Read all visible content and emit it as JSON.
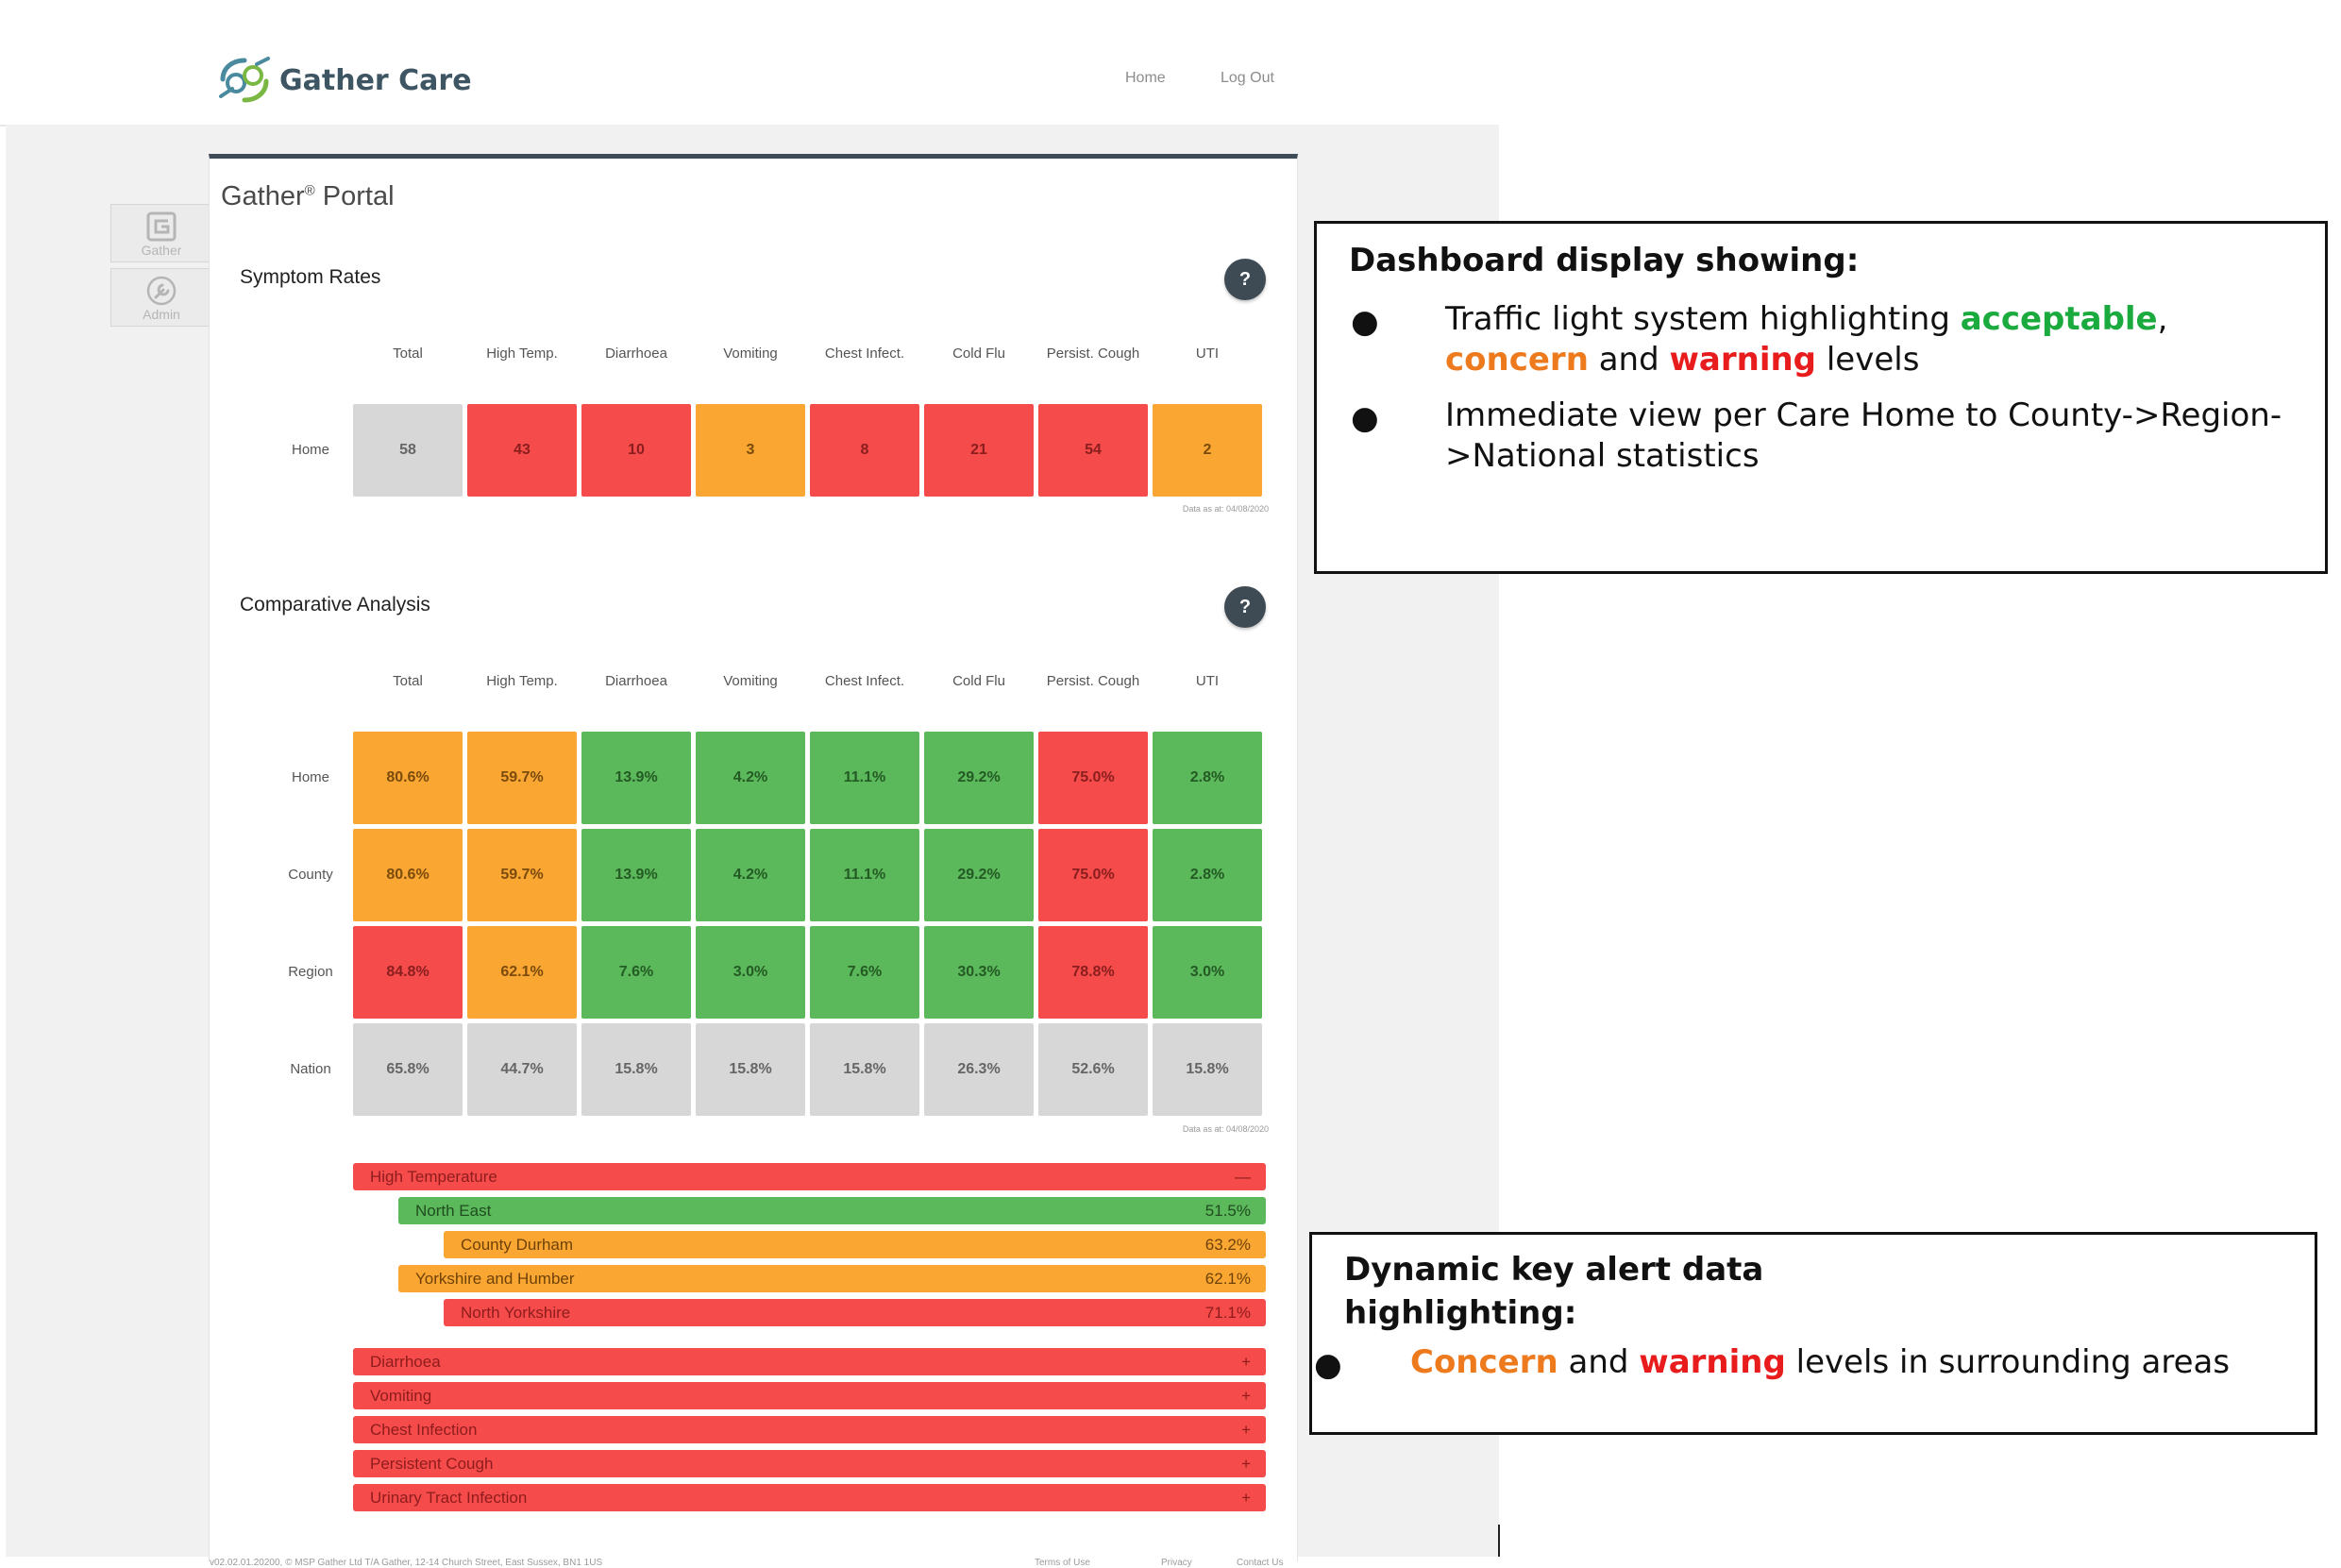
{
  "header": {
    "brand": "Gather Care",
    "nav_home": "Home",
    "nav_logout": "Log Out"
  },
  "sidebar": {
    "gather_label": "Gather",
    "admin_label": "Admin"
  },
  "portal": {
    "title": "Gather",
    "title_sup": "®",
    "title_suffix": "Portal"
  },
  "symptom_rates": {
    "title": "Symptom Rates",
    "help": "?",
    "columns": [
      "Total",
      "High Temp.",
      "Diarrhoea",
      "Vomiting",
      "Chest Infect.",
      "Cold Flu",
      "Persist. Cough",
      "UTI"
    ],
    "rows": [
      {
        "label": "Home",
        "values": [
          "58",
          "43",
          "10",
          "3",
          "8",
          "21",
          "54",
          "2"
        ],
        "levels": [
          "grey",
          "warn",
          "warn",
          "concern",
          "warn",
          "warn",
          "warn",
          "concern"
        ]
      }
    ],
    "as_of": "Data as at: 04/08/2020"
  },
  "comparative": {
    "title": "Comparative Analysis",
    "help": "?",
    "columns": [
      "Total",
      "High Temp.",
      "Diarrhoea",
      "Vomiting",
      "Chest Infect.",
      "Cold Flu",
      "Persist. Cough",
      "UTI"
    ],
    "rows": [
      {
        "label": "Home",
        "values": [
          "80.6%",
          "59.7%",
          "13.9%",
          "4.2%",
          "11.1%",
          "29.2%",
          "75.0%",
          "2.8%"
        ],
        "levels": [
          "concern",
          "concern",
          "ok",
          "ok",
          "ok",
          "ok",
          "warn",
          "ok"
        ]
      },
      {
        "label": "County",
        "values": [
          "80.6%",
          "59.7%",
          "13.9%",
          "4.2%",
          "11.1%",
          "29.2%",
          "75.0%",
          "2.8%"
        ],
        "levels": [
          "concern",
          "concern",
          "ok",
          "ok",
          "ok",
          "ok",
          "warn",
          "ok"
        ]
      },
      {
        "label": "Region",
        "values": [
          "84.8%",
          "62.1%",
          "7.6%",
          "3.0%",
          "7.6%",
          "30.3%",
          "78.8%",
          "3.0%"
        ],
        "levels": [
          "warn",
          "concern",
          "ok",
          "ok",
          "ok",
          "ok",
          "warn",
          "ok"
        ]
      },
      {
        "label": "Nation",
        "values": [
          "65.8%",
          "44.7%",
          "15.8%",
          "15.8%",
          "15.8%",
          "26.3%",
          "52.6%",
          "15.8%"
        ],
        "levels": [
          "grey",
          "grey",
          "grey",
          "grey",
          "grey",
          "grey",
          "grey",
          "grey"
        ]
      }
    ],
    "as_of": "Data as at: 04/08/2020"
  },
  "alerts": {
    "expanded": {
      "label": "High Temperature",
      "toggle": "—",
      "level": "warn",
      "children": [
        {
          "label": "North East",
          "value": "51.5%",
          "level": "ok",
          "indent": 1
        },
        {
          "label": "County Durham",
          "value": "63.2%",
          "level": "concern",
          "indent": 2
        },
        {
          "label": "Yorkshire and Humber",
          "value": "62.1%",
          "level": "concern",
          "indent": 1
        },
        {
          "label": "North Yorkshire",
          "value": "71.1%",
          "level": "warn",
          "indent": 2
        }
      ]
    },
    "collapsed": [
      {
        "label": "Diarrhoea",
        "toggle": "+"
      },
      {
        "label": "Vomiting",
        "toggle": "+"
      },
      {
        "label": "Chest Infection",
        "toggle": "+"
      },
      {
        "label": "Persistent Cough",
        "toggle": "+"
      },
      {
        "label": "Urinary Tract Infection",
        "toggle": "+"
      }
    ]
  },
  "footer": {
    "copyright": "v02.02.01.20200, © MSP Gather Ltd T/A Gather, 12-14 Church Street, East Sussex, BN1 1US",
    "terms": "Terms of Use",
    "privacy": "Privacy",
    "contact": "Contact Us"
  },
  "callout1": {
    "title": "Dashboard display showing:",
    "bullet1": {
      "prefix": "Traffic light system highlighting ",
      "acceptable": "acceptable",
      "comma": ",",
      "concern": "concern",
      "and": " and ",
      "warning": "warning",
      "suffix": " levels"
    },
    "bullet2": {
      "line1": "Immediate view per Care Home to County->Region-",
      "line2": ">National statistics"
    }
  },
  "callout2": {
    "title_line1": "Dynamic key alert data",
    "title_line2": "highlighting:",
    "bullet": {
      "concern": "Concern",
      "and": " and ",
      "warning": "warning",
      "suffix": " levels in surrounding areas"
    }
  },
  "colors": {
    "warning": "#f54b4b",
    "concern": "#faa632",
    "acceptable": "#5bb85b",
    "neutral": "#d7d7d7",
    "header_dark": "#3f4c57"
  },
  "icons": {
    "brand": "gather-logo-icon",
    "gather": "gather-g-icon",
    "admin": "wrench-icon"
  }
}
